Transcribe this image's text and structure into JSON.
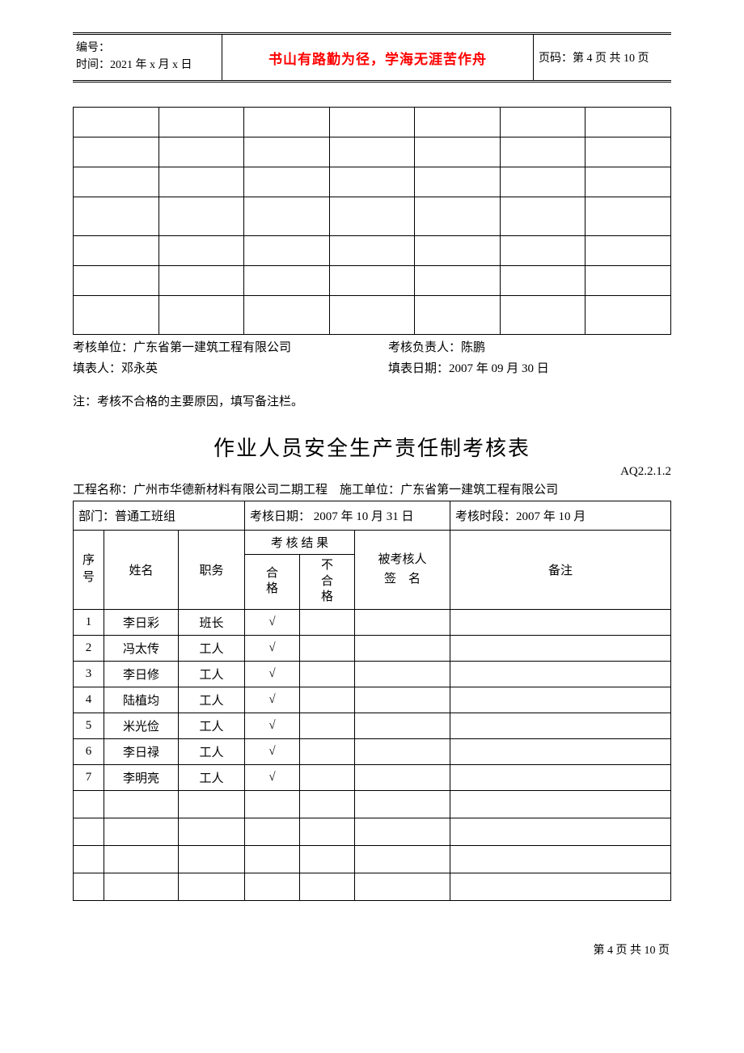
{
  "header": {
    "serial_label": "编号：",
    "time_label": "时间：",
    "time_value": "2021 年 x 月 x 日",
    "motto": "书山有路勤为径，学海无涯苦作舟",
    "page_label": "页码：",
    "page_value": "第 4 页 共 10 页"
  },
  "empty_table": {
    "cols": 7,
    "rows": [
      {
        "tall": false
      },
      {
        "tall": false
      },
      {
        "tall": false
      },
      {
        "tall": true
      },
      {
        "tall": false
      },
      {
        "tall": false
      },
      {
        "tall": true
      }
    ]
  },
  "info": {
    "assess_unit_label": "考核单位：",
    "assess_unit_value": "广东省第一建筑工程有限公司",
    "assess_leader_label": "考核负责人：",
    "assess_leader_value": "陈鹏",
    "filler_label": "填表人：",
    "filler_value": "邓永英",
    "fill_date_label": "填表日期：",
    "fill_date_value": "2007 年 09 月 30 日"
  },
  "note": "注：考核不合格的主要原因，填写备注栏。",
  "title": "作业人员安全生产责任制考核表",
  "form_code": "AQ2.2.1.2",
  "project_line": {
    "name_label": "工程名称：",
    "name_value": "广州市华德新材料有限公司二期工程",
    "unit_label": "施工单位：",
    "unit_value": "广东省第一建筑工程有限公司"
  },
  "main_table": {
    "dept_label": "部门：",
    "dept_value": "普通工班组",
    "assess_date_label": "考核日期：",
    "assess_date_value": " 2007 年 10 月 31 日",
    "assess_period_label": "考核时段：",
    "assess_period_value": "2007 年 10 月",
    "columns": {
      "seq": "序号",
      "name": "姓名",
      "position": "职务",
      "result": "考 核 结 果",
      "pass": "合格",
      "fail": "不合格",
      "signature": "被考核人\n签　名",
      "remark": "备注"
    },
    "rows": [
      {
        "seq": "1",
        "name": "李日彩",
        "position": "班长",
        "pass": "√",
        "fail": "",
        "sig": "",
        "remark": ""
      },
      {
        "seq": "2",
        "name": "冯太传",
        "position": "工人",
        "pass": "√",
        "fail": "",
        "sig": "",
        "remark": ""
      },
      {
        "seq": "3",
        "name": "李日修",
        "position": "工人",
        "pass": "√",
        "fail": "",
        "sig": "",
        "remark": ""
      },
      {
        "seq": "4",
        "name": "陆植均",
        "position": "工人",
        "pass": "√",
        "fail": "",
        "sig": "",
        "remark": ""
      },
      {
        "seq": "5",
        "name": "米光俭",
        "position": "工人",
        "pass": "√",
        "fail": "",
        "sig": "",
        "remark": ""
      },
      {
        "seq": "6",
        "name": "李日禄",
        "position": "工人",
        "pass": "√",
        "fail": "",
        "sig": "",
        "remark": ""
      },
      {
        "seq": "7",
        "name": "李明亮",
        "position": "工人",
        "pass": "√",
        "fail": "",
        "sig": "",
        "remark": ""
      }
    ],
    "empty_rows": 4
  },
  "footer": "第 4 页 共 10 页"
}
